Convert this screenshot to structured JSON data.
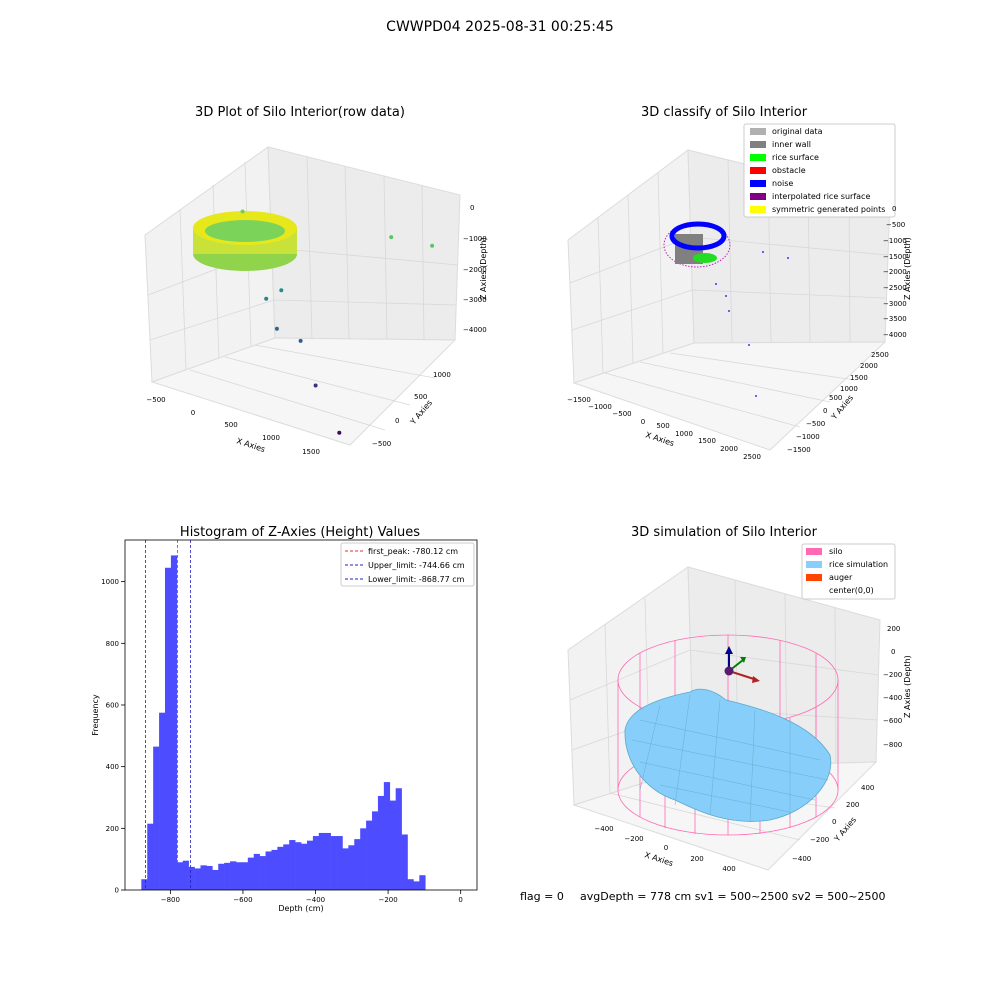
{
  "suptitle": "CWWPD04 2025-08-31 00:25:45",
  "footer": {
    "flag": "flag = 0",
    "stats": "avgDepth = 778 cm  sv1 = 500~2500  sv2 = 500~2500"
  },
  "colors": {
    "histogram_bar": "#4d4dff",
    "first_peak_line": "#e03030",
    "limit_lines": "#2020c0",
    "silo": "#ff69b4",
    "rice_simulation": "#87cefa",
    "auger": "#ff4500",
    "original_data": "#b0b0b0",
    "inner_wall": "#808080",
    "rice_surface": "#00ff00",
    "obstacle": "#ff0000",
    "noise": "#0000ff",
    "interpolated_rice_surface": "#800080",
    "symmetric_generated_points": "#ffff00",
    "pane": "#f2f2f2",
    "grid": "#d6d6d6"
  },
  "chart_data": [
    {
      "type": "scatter",
      "projection": "3d",
      "title": "3D Plot of Silo Interior(row data)",
      "xlabel": "X Axies",
      "ylabel": "Y Axies",
      "zlabel": "Z Axies (Depth)",
      "x_ticks": [
        "−500",
        "0",
        "500",
        "1000",
        "1500"
      ],
      "y_ticks": [
        "−500",
        "0",
        "500",
        "1000"
      ],
      "z_ticks": [
        "0",
        "−1000",
        "−2000",
        "−3000",
        "−4000"
      ],
      "xlim": [
        -600,
        1700
      ],
      "ylim": [
        -600,
        1300
      ],
      "zlim": [
        -4300,
        200
      ],
      "colormap": "viridis (by depth)",
      "grid": true,
      "description_points": [
        {
          "x": -300,
          "y": 400,
          "z": -800
        },
        {
          "x": 900,
          "y": 1100,
          "z": -1000
        },
        {
          "x": 1300,
          "y": 1200,
          "z": -1000
        },
        {
          "x": 300,
          "y": 200,
          "z": -2100
        },
        {
          "x": 200,
          "y": 100,
          "z": -2300
        },
        {
          "x": 400,
          "y": 0,
          "z": -2800
        },
        {
          "x": 600,
          "y": 100,
          "z": -3000
        },
        {
          "x": 1000,
          "y": -200,
          "z": -3600
        },
        {
          "x": 1500,
          "y": -500,
          "z": -4200
        }
      ]
    },
    {
      "type": "scatter",
      "projection": "3d",
      "title": "3D classify of Silo Interior",
      "xlabel": "X Axies",
      "ylabel": "Y Axies",
      "zlabel": "Z Axies (Depth)",
      "x_ticks": [
        "−1500",
        "−1000",
        "−500",
        "0",
        "500",
        "1000",
        "1500",
        "2000",
        "2500"
      ],
      "y_ticks": [
        "−1500",
        "−1000",
        "−500",
        "0",
        "500",
        "1000",
        "1500",
        "2000",
        "2500"
      ],
      "z_ticks": [
        "0",
        "−500",
        "−1000",
        "−1500",
        "−2000",
        "−2500",
        "−3000",
        "−3500",
        "−4000"
      ],
      "legend": [
        {
          "label": "original data",
          "color_key": "original_data"
        },
        {
          "label": "inner wall",
          "color_key": "inner_wall"
        },
        {
          "label": "rice surface",
          "color_key": "rice_surface"
        },
        {
          "label": "obstacle",
          "color_key": "obstacle"
        },
        {
          "label": "noise",
          "color_key": "noise"
        },
        {
          "label": "interpolated rice surface",
          "color_key": "interpolated_rice_surface"
        },
        {
          "label": "symmetric generated points",
          "color_key": "symmetric_generated_points"
        }
      ],
      "legend_position": "top-right",
      "grid": true
    },
    {
      "type": "bar",
      "title": "Histogram of Z-Axies (Height) Values",
      "xlabel": "Depth (cm)",
      "ylabel": "Frequency",
      "x_ticks": [
        "−800",
        "−600",
        "−400",
        "−200",
        "0"
      ],
      "y_ticks": [
        "0",
        "200",
        "400",
        "600",
        "800",
        "1000"
      ],
      "xlim": [
        -925,
        45
      ],
      "ylim": [
        0,
        1135
      ],
      "bin_start": -880,
      "bin_width": 16.3,
      "values": [
        35,
        215,
        465,
        575,
        1045,
        1085,
        90,
        95,
        75,
        70,
        80,
        78,
        65,
        85,
        88,
        93,
        90,
        90,
        105,
        117,
        110,
        125,
        130,
        140,
        148,
        162,
        155,
        150,
        160,
        175,
        185,
        185,
        175,
        175,
        135,
        145,
        165,
        200,
        225,
        255,
        305,
        350,
        290,
        330,
        180,
        35,
        28,
        48
      ],
      "lines": [
        {
          "label": "first_peak: -780.12 cm",
          "x": -780.12,
          "color_key": "first_peak_line"
        },
        {
          "label": "Upper_limit: -744.66 cm",
          "x": -744.66,
          "color_key": "limit_lines"
        },
        {
          "label": "Lower_limit: -868.77 cm",
          "x": -868.77,
          "color_key": "limit_lines"
        }
      ],
      "legend_position": "top-right"
    },
    {
      "type": "surface",
      "projection": "3d",
      "title": "3D simulation of Silo Interior",
      "xlabel": "X Axies",
      "ylabel": "Y Axies",
      "zlabel": "Z Axies (Depth)",
      "x_ticks": [
        "−400",
        "−200",
        "0",
        "200",
        "400"
      ],
      "y_ticks": [
        "−400",
        "−200",
        "0",
        "200",
        "400"
      ],
      "z_ticks": [
        "200",
        "0",
        "−200",
        "−400",
        "−600",
        "−800"
      ],
      "legend": [
        {
          "label": "silo",
          "color_key": "silo"
        },
        {
          "label": "rice simulation",
          "color_key": "rice_simulation"
        },
        {
          "label": "auger",
          "color_key": "auger"
        },
        {
          "label": "center(0,0)",
          "color_key": ""
        }
      ],
      "legend_position": "top-right",
      "grid": true
    }
  ]
}
